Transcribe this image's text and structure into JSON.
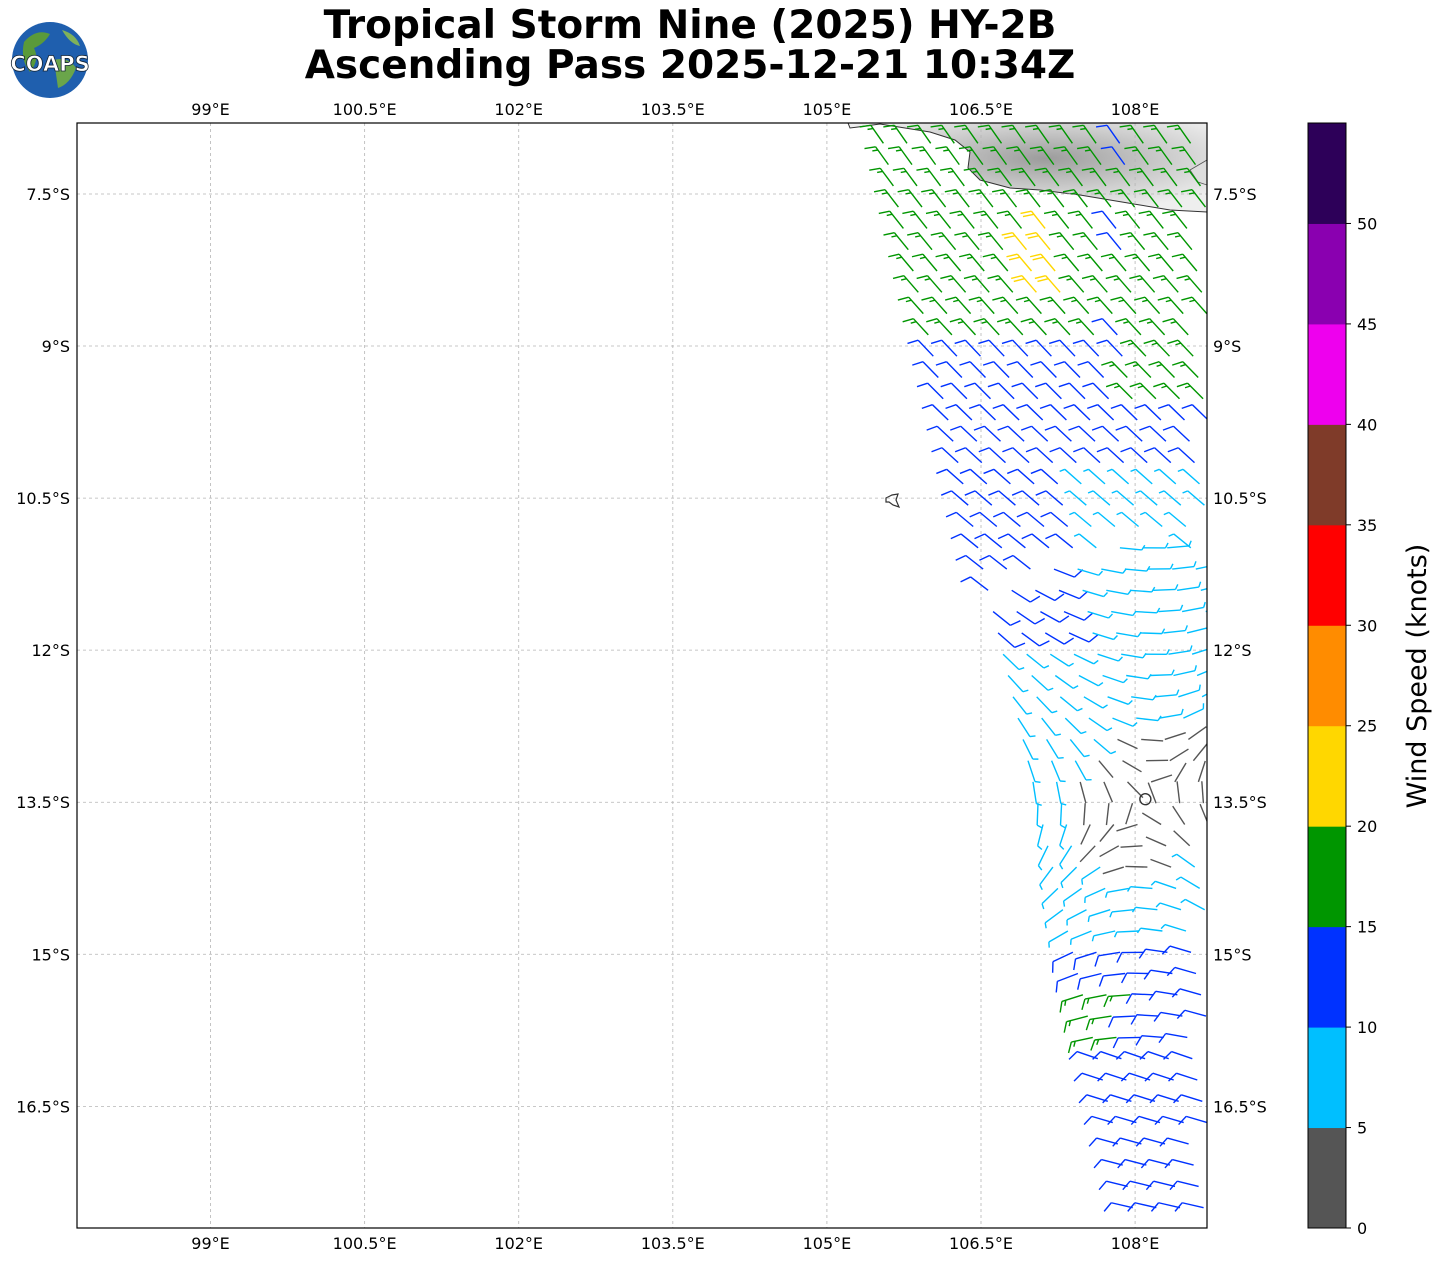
{
  "title": {
    "line1": "Tropical Storm Nine (2025) HY-2B",
    "line2": "Ascending Pass 2025-12-21 10:34Z"
  },
  "logo": {
    "text": "COAPS",
    "icon": "globe-logo-icon"
  },
  "map": {
    "lon_range": [
      97.7,
      108.7
    ],
    "lat_range": [
      -17.7,
      -6.8
    ],
    "lon_ticks": [
      {
        "value": 99,
        "label": "99°E"
      },
      {
        "value": 100.5,
        "label": "100.5°E"
      },
      {
        "value": 102,
        "label": "102°E"
      },
      {
        "value": 103.5,
        "label": "103.5°E"
      },
      {
        "value": 105,
        "label": "105°E"
      },
      {
        "value": 106.5,
        "label": "106.5°E"
      },
      {
        "value": 108,
        "label": "108°E"
      }
    ],
    "lat_ticks": [
      {
        "value": -7.5,
        "label": "7.5°S"
      },
      {
        "value": -9,
        "label": "9°S"
      },
      {
        "value": -10.5,
        "label": "10.5°S"
      },
      {
        "value": -12,
        "label": "12°S"
      },
      {
        "value": -13.5,
        "label": "13.5°S"
      },
      {
        "value": -15,
        "label": "15°S"
      },
      {
        "value": -16.5,
        "label": "16.5°S"
      }
    ],
    "grid": true,
    "storm_center": {
      "lon": 108.1,
      "lat": -13.47
    }
  },
  "colorbar": {
    "label": "Wind Speed (knots)",
    "bins": [
      {
        "from": 0,
        "to": 5,
        "color": "#555555"
      },
      {
        "from": 5,
        "to": 10,
        "color": "#00bfff"
      },
      {
        "from": 10,
        "to": 15,
        "color": "#0032ff"
      },
      {
        "from": 15,
        "to": 20,
        "color": "#009600"
      },
      {
        "from": 20,
        "to": 25,
        "color": "#ffd700"
      },
      {
        "from": 25,
        "to": 30,
        "color": "#ff8c00"
      },
      {
        "from": 30,
        "to": 35,
        "color": "#ff0000"
      },
      {
        "from": 35,
        "to": 40,
        "color": "#7f3b29"
      },
      {
        "from": 40,
        "to": 45,
        "color": "#ee00ee"
      },
      {
        "from": 45,
        "to": 50,
        "color": "#8a00b0"
      },
      {
        "from": 50,
        "to": 55,
        "color": "#2d0059"
      }
    ],
    "tick_labels": [
      "0",
      "5",
      "10",
      "15",
      "20",
      "25",
      "30",
      "35",
      "40",
      "45",
      "50"
    ]
  }
}
